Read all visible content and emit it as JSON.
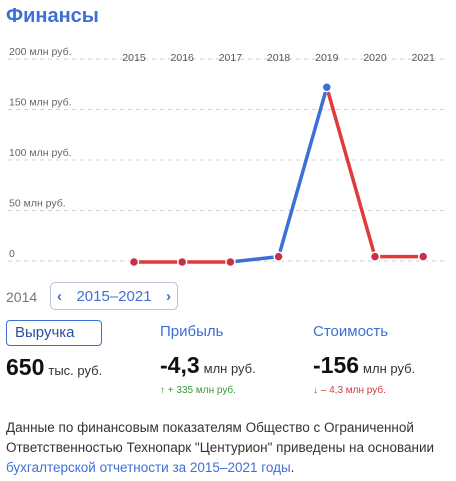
{
  "title": "Финансы",
  "chart_data": {
    "type": "line",
    "categories": [
      "2015",
      "2016",
      "2017",
      "2018",
      "2019",
      "2020",
      "2021"
    ],
    "series": [
      {
        "values": [
          0,
          0,
          0,
          4.3,
          172,
          4.3,
          4.3
        ]
      }
    ],
    "y_ticks": [
      "200 млн руб.",
      "150 млн руб.",
      "100 млн руб.",
      "50 млн руб.",
      "0"
    ],
    "y_tick_values": [
      200,
      150,
      100,
      50,
      0
    ],
    "ylim": [
      0,
      200
    ],
    "grid": true,
    "colors": {
      "up": "#3d6fd9",
      "down": "#e03a3a",
      "point": "#3d6fd9",
      "point_down": "#c8304a",
      "gridline": "#cfcfcf"
    }
  },
  "range": {
    "prev_year": "2014",
    "label": "2015–2021",
    "prev_arrow": "‹",
    "next_arrow": "›"
  },
  "metrics": [
    {
      "name": "Выручка",
      "value": "650",
      "unit": "тыс. руб.",
      "delta": ""
    },
    {
      "name": "Прибыль",
      "value": "-4,3",
      "unit": "млн руб.",
      "delta": "↑ + 335 млн руб."
    },
    {
      "name": "Стоимость",
      "value": "-156",
      "unit": "млн руб.",
      "delta": "↓ – 4,3 млн руб."
    }
  ],
  "description": {
    "text": "Данные по финансовым показателям Общество с Ограниченной Ответственностью Технопарк \"Центурион\" приведены на основании ",
    "link": "бухгалтерской отчетности за 2015–2021 годы",
    "tail": "."
  }
}
